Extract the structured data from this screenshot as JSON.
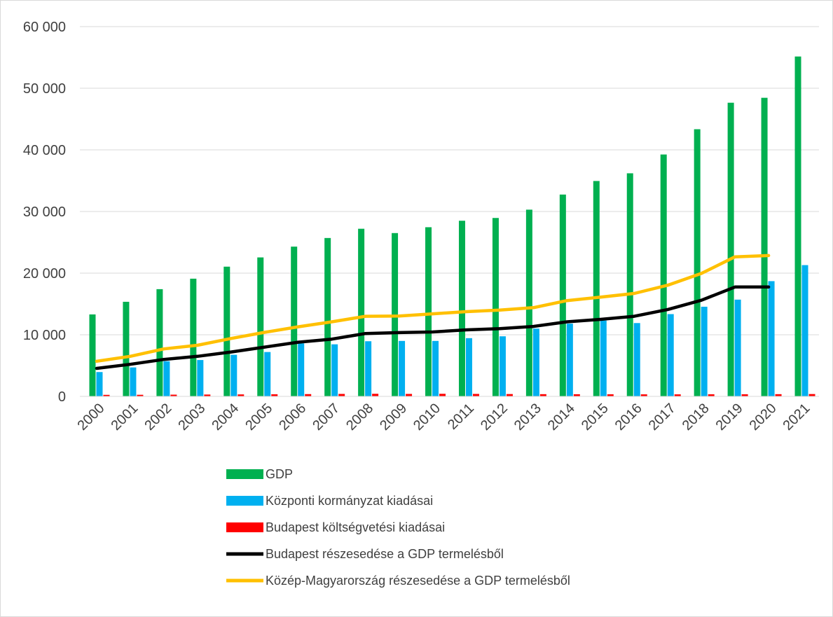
{
  "chart_data": {
    "type": "bar",
    "title": "",
    "xlabel": "",
    "ylabel": "",
    "ylim": [
      0,
      60000
    ],
    "yticks": [
      0,
      10000,
      20000,
      30000,
      40000,
      50000,
      60000
    ],
    "ytick_labels": [
      "0",
      "10 000",
      "20 000",
      "30 000",
      "40 000",
      "50 000",
      "60 000"
    ],
    "grid": true,
    "legend_position": "bottom",
    "categories": [
      "2000",
      "2001",
      "2002",
      "2003",
      "2004",
      "2005",
      "2006",
      "2007",
      "2008",
      "2009",
      "2010",
      "2011",
      "2012",
      "2013",
      "2014",
      "2015",
      "2016",
      "2017",
      "2018",
      "2019",
      "2020",
      "2021"
    ],
    "series": [
      {
        "name": "GDP",
        "kind": "bar",
        "color": "#00b050",
        "values": [
          13300,
          15350,
          17400,
          19100,
          21050,
          22550,
          24300,
          25700,
          27200,
          26500,
          27450,
          28500,
          28950,
          30300,
          32750,
          34950,
          36200,
          39250,
          43350,
          47650,
          48450,
          55150
        ]
      },
      {
        "name": "Központi kormányzat kiadásai",
        "kind": "bar",
        "color": "#00b0f0",
        "values": [
          3950,
          4700,
          5700,
          5900,
          6750,
          7200,
          8600,
          8450,
          8950,
          9000,
          9000,
          9450,
          9750,
          11000,
          11800,
          12300,
          11900,
          13350,
          14550,
          15700,
          18700,
          21300
        ]
      },
      {
        "name": "Budapest költségvetési kiadásai",
        "kind": "bar",
        "color": "#ff0000",
        "values": [
          250,
          260,
          280,
          300,
          320,
          340,
          370,
          400,
          420,
          400,
          420,
          400,
          380,
          360,
          350,
          340,
          330,
          330,
          340,
          340,
          360,
          380
        ]
      },
      {
        "name": "Budapest részesedése a GDP termelésből",
        "kind": "line",
        "color": "#000000",
        "values": [
          4550,
          5200,
          6000,
          6500,
          7200,
          8000,
          8800,
          9300,
          10200,
          10350,
          10450,
          10800,
          11000,
          11350,
          12100,
          12500,
          13000,
          14100,
          15600,
          17750,
          17750,
          null
        ]
      },
      {
        "name": "Közép-Magyarország részesedése a GDP termelésből",
        "kind": "line",
        "color": "#ffc000",
        "values": [
          5700,
          6500,
          7700,
          8300,
          9400,
          10400,
          11300,
          12100,
          13000,
          13050,
          13400,
          13750,
          14000,
          14400,
          15550,
          16100,
          16700,
          18050,
          19950,
          22650,
          22850,
          null
        ]
      }
    ]
  }
}
